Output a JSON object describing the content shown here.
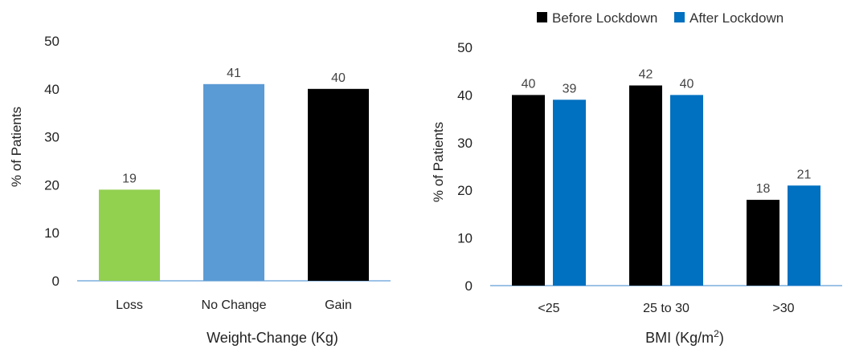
{
  "chart_data": [
    {
      "type": "bar",
      "categories": [
        "Loss",
        "No Change",
        "Gain"
      ],
      "values": [
        19,
        41,
        40
      ],
      "data_labels": [
        "19",
        "41",
        "40"
      ],
      "bar_colors": [
        "#92d050",
        "#5b9bd5",
        "#000000"
      ],
      "title": "",
      "xlabel": "Weight-Change",
      "xlabel_unit": "(Kg)",
      "ylabel": "% of Patients",
      "ylim": [
        0,
        50
      ],
      "yticks": [
        "0",
        "10",
        "20",
        "30",
        "40",
        "50"
      ],
      "grid": false,
      "legend": "none"
    },
    {
      "type": "bar",
      "categories": [
        "<25",
        "25 to 30",
        ">30"
      ],
      "series": [
        {
          "name": "Before Lockdown",
          "color": "#000000",
          "values": [
            40,
            42,
            18
          ],
          "data_labels": [
            "40",
            "42",
            "18"
          ]
        },
        {
          "name": "After Lockdown",
          "color": "#0070c0",
          "values": [
            39,
            40,
            21
          ],
          "data_labels": [
            "39",
            "40",
            "21"
          ]
        }
      ],
      "title": "",
      "xlabel": "BMI (Kg/m",
      "xlabel_sup": "2",
      "xlabel_end": ")",
      "ylabel": "% of Patients",
      "ylim": [
        0,
        50
      ],
      "yticks": [
        "0",
        "10",
        "20",
        "30",
        "40",
        "50"
      ],
      "grid": false,
      "legend": "top"
    }
  ]
}
